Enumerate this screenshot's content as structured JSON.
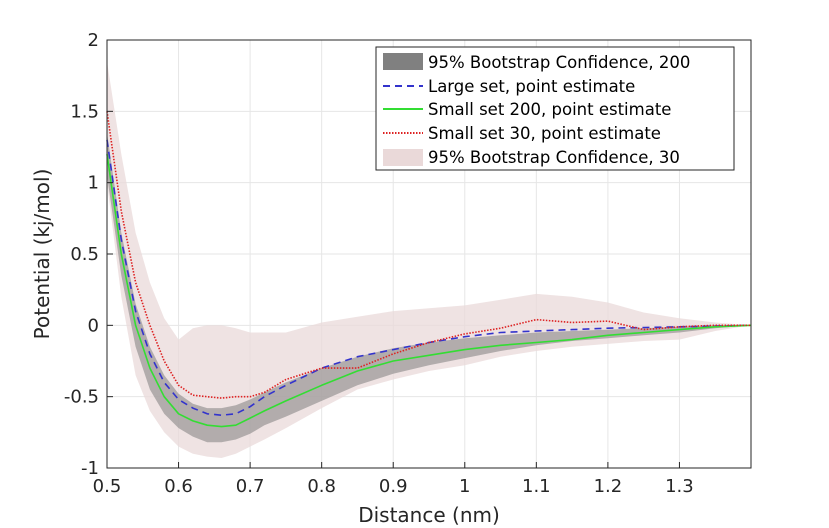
{
  "chart_data": {
    "type": "line",
    "title": "",
    "xlabel": "Distance (nm)",
    "ylabel": "Potential (kj/mol)",
    "xlim": [
      0.5,
      1.4
    ],
    "ylim": [
      -1,
      2
    ],
    "xticks": [
      0.5,
      0.6,
      0.7,
      0.8,
      0.9,
      1,
      1.1,
      1.2,
      1.3
    ],
    "xtick_labels": [
      "0.5",
      "0.6",
      "0.7",
      "0.8",
      "0.9",
      "1",
      "1.1",
      "1.2",
      "1.3"
    ],
    "yticks": [
      -1,
      -0.5,
      0,
      0.5,
      1,
      1.5,
      2
    ],
    "ytick_labels": [
      "-1",
      "-0.5",
      "0",
      "0.5",
      "1",
      "1.5",
      "2"
    ],
    "grid": true,
    "legend_position": "top-right",
    "legend": [
      {
        "label": "95% Bootstrap Confidence, 200",
        "kind": "band",
        "color": "#808080"
      },
      {
        "label": "Large set, point estimate",
        "kind": "dashed",
        "color": "#3333cc"
      },
      {
        "label": "Small set 200, point estimate",
        "kind": "solid",
        "color": "#33dd33"
      },
      {
        "label": "Small set 30, point estimate",
        "kind": "dotted",
        "color": "#dd2222"
      },
      {
        "label": "95% Bootstrap Confidence, 30",
        "kind": "band",
        "color": "#ead9d9"
      }
    ],
    "x": [
      0.5,
      0.52,
      0.54,
      0.56,
      0.58,
      0.6,
      0.62,
      0.64,
      0.66,
      0.68,
      0.7,
      0.72,
      0.75,
      0.8,
      0.85,
      0.9,
      0.95,
      1.0,
      1.05,
      1.1,
      1.15,
      1.2,
      1.25,
      1.3,
      1.35,
      1.4
    ],
    "series": [
      {
        "name": "Large set, point estimate",
        "values": [
          1.3,
          0.6,
          0.1,
          -0.2,
          -0.4,
          -0.52,
          -0.58,
          -0.62,
          -0.63,
          -0.62,
          -0.57,
          -0.5,
          -0.42,
          -0.3,
          -0.22,
          -0.17,
          -0.12,
          -0.08,
          -0.05,
          -0.04,
          -0.03,
          -0.02,
          -0.015,
          -0.01,
          -0.005,
          0.0
        ]
      },
      {
        "name": "Small set 200, point estimate",
        "values": [
          1.2,
          0.5,
          0.0,
          -0.3,
          -0.5,
          -0.62,
          -0.67,
          -0.7,
          -0.71,
          -0.7,
          -0.65,
          -0.6,
          -0.53,
          -0.42,
          -0.32,
          -0.25,
          -0.21,
          -0.17,
          -0.14,
          -0.12,
          -0.1,
          -0.07,
          -0.05,
          -0.03,
          -0.01,
          0.0
        ]
      },
      {
        "name": "Small set 30, point estimate",
        "values": [
          1.5,
          0.8,
          0.3,
          0.0,
          -0.25,
          -0.42,
          -0.49,
          -0.5,
          -0.51,
          -0.5,
          -0.5,
          -0.47,
          -0.38,
          -0.3,
          -0.3,
          -0.2,
          -0.12,
          -0.06,
          -0.02,
          0.04,
          0.02,
          0.03,
          -0.03,
          -0.01,
          0.0,
          0.0
        ]
      }
    ],
    "bands": [
      {
        "name": "95% Bootstrap Confidence, 30",
        "lower": [
          1.0,
          0.2,
          -0.35,
          -0.6,
          -0.75,
          -0.85,
          -0.9,
          -0.92,
          -0.93,
          -0.9,
          -0.85,
          -0.8,
          -0.72,
          -0.58,
          -0.45,
          -0.38,
          -0.32,
          -0.28,
          -0.22,
          -0.18,
          -0.15,
          -0.13,
          -0.11,
          -0.1,
          -0.04,
          0.0
        ],
        "upper": [
          1.85,
          1.2,
          0.65,
          0.3,
          0.05,
          -0.1,
          -0.02,
          0.0,
          0.0,
          -0.02,
          -0.05,
          -0.05,
          -0.05,
          0.02,
          0.06,
          0.1,
          0.12,
          0.14,
          0.18,
          0.22,
          0.2,
          0.16,
          0.09,
          0.05,
          0.02,
          0.0
        ]
      },
      {
        "name": "95% Bootstrap Confidence, 200",
        "lower": [
          1.05,
          0.35,
          -0.15,
          -0.45,
          -0.62,
          -0.72,
          -0.78,
          -0.82,
          -0.82,
          -0.8,
          -0.76,
          -0.7,
          -0.64,
          -0.53,
          -0.42,
          -0.34,
          -0.28,
          -0.23,
          -0.18,
          -0.14,
          -0.11,
          -0.09,
          -0.07,
          -0.05,
          -0.02,
          0.0
        ],
        "upper": [
          1.35,
          0.65,
          0.15,
          -0.15,
          -0.35,
          -0.48,
          -0.55,
          -0.58,
          -0.58,
          -0.56,
          -0.52,
          -0.47,
          -0.4,
          -0.3,
          -0.22,
          -0.16,
          -0.12,
          -0.09,
          -0.07,
          -0.05,
          -0.04,
          -0.03,
          -0.02,
          -0.01,
          0.0,
          0.0
        ]
      }
    ]
  }
}
